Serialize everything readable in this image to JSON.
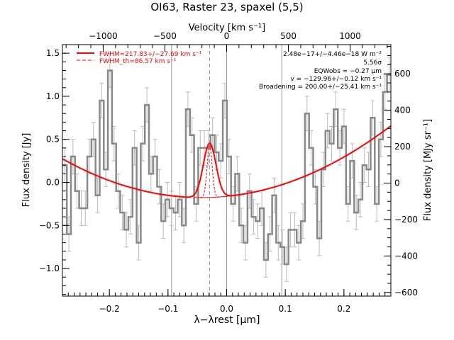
{
  "chart_data": {
    "type": "line",
    "title": "OI63, Raster 23, spaxel (5,5)",
    "xlabel": "λ−λrest [μm]",
    "ylabel": "Flux density [Jy]",
    "top_xlabel": "Velocity [km s⁻¹]",
    "right_ylabel": "Flux density [MJy sr⁻¹]",
    "xlim": [
      -0.28,
      0.28
    ],
    "ylim": [
      -1.32,
      1.6
    ],
    "top_xlim": [
      -1330,
      1330
    ],
    "right_ylim": [
      -620,
      760
    ],
    "x_ticks": [
      -0.2,
      -0.1,
      0.0,
      0.1,
      0.2
    ],
    "x_tick_labels": [
      "−0.2",
      "−0.1",
      "0.0",
      "0.1",
      "0.2"
    ],
    "y_ticks": [
      -1.0,
      -0.5,
      0.0,
      0.5,
      1.0,
      1.5
    ],
    "y_tick_labels": [
      "−1.0",
      "−0.5",
      "0.0",
      "0.5",
      "1.0",
      "1.5"
    ],
    "top_ticks": [
      -1000,
      -500,
      0,
      500,
      1000
    ],
    "top_tick_labels": [
      "−1000",
      "−500",
      "0",
      "500",
      "1000"
    ],
    "right_ticks": [
      -600,
      -400,
      -200,
      0,
      200,
      400,
      600
    ],
    "right_tick_labels": [
      "−600",
      "−400",
      "−200",
      "0",
      "200",
      "400",
      "600"
    ],
    "vertical_lines": [
      -0.094,
      0.0,
      0.094
    ],
    "line_center": -0.029,
    "grid": false,
    "legend_position": "top-left",
    "legend": [
      {
        "label": "FWHM=217.83+/−27.69 km s⁻¹",
        "style": "solid",
        "color": "#ff0000"
      },
      {
        "label": "FWHM_th=86.57 km s⁻¹",
        "style": "dashed",
        "color": "#ff0000"
      }
    ],
    "annotations": [
      "2.48e−17+/−4.46e−18 W m⁻²",
      "5.56σ",
      "EQWobs = −0.27 μm",
      "v = −129.96+/−0.12 km s⁻¹",
      "Broadening = 200.00+/−25.41 km s⁻¹"
    ],
    "series": [
      {
        "kind": "data",
        "color": "#888888",
        "x": [
          -0.276,
          -0.269,
          -0.262,
          -0.255,
          -0.248,
          -0.241,
          -0.234,
          -0.227,
          -0.22,
          -0.213,
          -0.206,
          -0.199,
          -0.192,
          -0.185,
          -0.178,
          -0.171,
          -0.164,
          -0.157,
          -0.15,
          -0.143,
          -0.136,
          -0.129,
          -0.122,
          -0.115,
          -0.108,
          -0.101,
          -0.094,
          -0.087,
          -0.08,
          -0.073,
          -0.066,
          -0.059,
          -0.052,
          -0.045,
          -0.038,
          -0.031,
          -0.024,
          -0.017,
          -0.01,
          -0.003,
          0.004,
          0.011,
          0.018,
          0.025,
          0.032,
          0.039,
          0.046,
          0.053,
          0.06,
          0.067,
          0.074,
          0.081,
          0.088,
          0.095,
          0.102,
          0.109,
          0.116,
          0.123,
          0.13,
          0.137,
          0.144,
          0.151,
          0.158,
          0.165,
          0.172,
          0.179,
          0.186,
          0.193,
          0.2,
          0.207,
          0.214,
          0.221,
          0.228,
          0.235,
          0.242,
          0.249,
          0.256,
          0.263,
          0.27,
          0.277
        ],
        "values": [
          0.2,
          -0.6,
          0.3,
          -0.1,
          -0.3,
          -0.3,
          0.3,
          0.5,
          -0.15,
          0.95,
          0.15,
          1.3,
          0.45,
          -0.1,
          -0.35,
          -0.55,
          -0.4,
          0.4,
          -0.7,
          0.45,
          0.9,
          0.1,
          0.3,
          -0.05,
          -0.45,
          -0.2,
          -0.3,
          -0.35,
          -0.2,
          -0.5,
          0.85,
          0.55,
          -0.25,
          0.4,
          0.4,
          0.4,
          0.55,
          0.35,
          0.25,
          0.95,
          0.3,
          -0.25,
          0.1,
          -0.5,
          -0.7,
          -0.1,
          -0.4,
          -0.45,
          -0.3,
          -0.9,
          -0.6,
          -0.15,
          -0.7,
          -0.75,
          -0.95,
          -0.55,
          -0.55,
          -0.7,
          -0.45,
          0.8,
          0.4,
          -0.05,
          -0.65,
          0.15,
          0.6,
          0.45,
          0.85,
          0.4,
          0.65,
          -0.25,
          0.25,
          -0.35,
          -0.2,
          0.2,
          0.15,
          0.75,
          -0.25,
          0.5,
          1.05,
          1.25
        ],
        "errors": 0.2
      },
      {
        "kind": "baseline",
        "color": "#ff0000",
        "coeffs": [
          -0.175,
          0.22,
          8.0
        ]
      },
      {
        "kind": "fit",
        "color": "#ff0000",
        "center": -0.029,
        "sigma": 0.0108,
        "amplitude": 0.63
      },
      {
        "kind": "thermal",
        "color": "#ff0000",
        "center": -0.029,
        "sigma": 0.0043,
        "amplitude": 0.6
      }
    ]
  }
}
